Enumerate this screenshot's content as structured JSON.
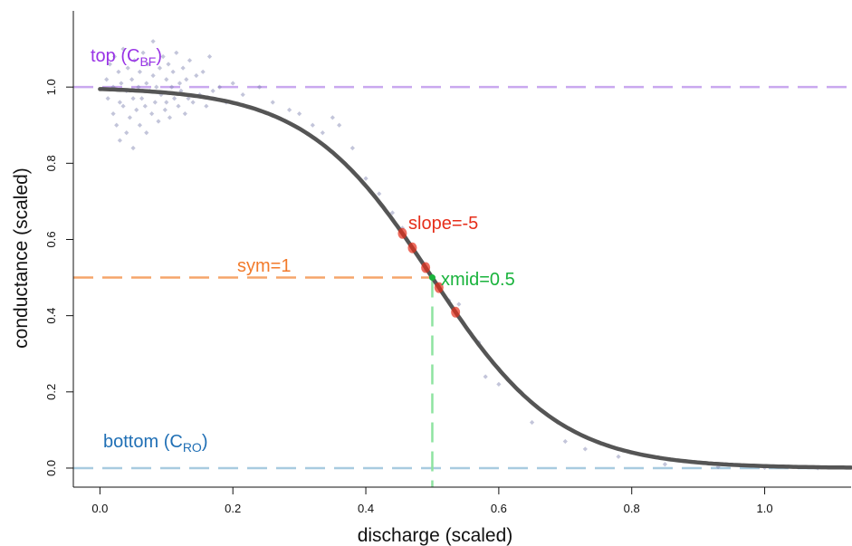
{
  "chart_data": {
    "type": "scatter",
    "xlabel": "discharge (scaled)",
    "ylabel": "conductance (scaled)",
    "xlim": [
      -0.04,
      1.13
    ],
    "ylim": [
      -0.05,
      1.2
    ],
    "x_ticks": [
      0.0,
      0.2,
      0.4,
      0.6,
      0.8,
      1.0
    ],
    "x_tick_labels": [
      "0.0",
      "0.2",
      "0.4",
      "0.6",
      "0.8",
      "1.0"
    ],
    "y_ticks": [
      0.0,
      0.2,
      0.4,
      0.6,
      0.8,
      1.0
    ],
    "y_tick_labels": [
      "0.0",
      "0.2",
      "0.4",
      "0.6",
      "0.8",
      "1.0"
    ],
    "grid": false,
    "model": {
      "top": 1.0,
      "bottom": 0.0,
      "xmid": 0.5,
      "slope": -5,
      "sym": 1
    },
    "scatter_points": [
      [
        0.01,
        1.02
      ],
      [
        0.012,
        0.97
      ],
      [
        0.015,
        1.06
      ],
      [
        0.02,
        0.93
      ],
      [
        0.02,
        1.0
      ],
      [
        0.022,
        1.08
      ],
      [
        0.025,
        0.9
      ],
      [
        0.028,
        1.04
      ],
      [
        0.03,
        0.96
      ],
      [
        0.03,
        0.86
      ],
      [
        0.032,
        1.01
      ],
      [
        0.035,
        0.95
      ],
      [
        0.035,
        1.1
      ],
      [
        0.04,
        0.88
      ],
      [
        0.04,
        0.99
      ],
      [
        0.042,
        1.05
      ],
      [
        0.045,
        0.92
      ],
      [
        0.048,
        1.02
      ],
      [
        0.05,
        0.97
      ],
      [
        0.05,
        0.84
      ],
      [
        0.052,
        1.07
      ],
      [
        0.055,
        0.94
      ],
      [
        0.058,
        1.0
      ],
      [
        0.06,
        0.9
      ],
      [
        0.06,
        1.04
      ],
      [
        0.063,
        0.97
      ],
      [
        0.065,
        1.09
      ],
      [
        0.068,
        0.95
      ],
      [
        0.07,
        1.01
      ],
      [
        0.07,
        0.88
      ],
      [
        0.072,
        1.06
      ],
      [
        0.075,
        0.99
      ],
      [
        0.078,
        0.93
      ],
      [
        0.08,
        1.03
      ],
      [
        0.08,
        1.12
      ],
      [
        0.083,
        0.96
      ],
      [
        0.085,
        1.0
      ],
      [
        0.088,
        0.91
      ],
      [
        0.09,
        1.05
      ],
      [
        0.092,
        0.98
      ],
      [
        0.095,
        1.08
      ],
      [
        0.098,
        0.94
      ],
      [
        0.1,
        1.02
      ],
      [
        0.1,
        0.96
      ],
      [
        0.103,
        1.06
      ],
      [
        0.105,
        0.92
      ],
      [
        0.108,
        1.0
      ],
      [
        0.11,
        1.04
      ],
      [
        0.112,
        0.97
      ],
      [
        0.115,
        1.09
      ],
      [
        0.118,
        0.95
      ],
      [
        0.12,
        1.01
      ],
      [
        0.122,
        0.99
      ],
      [
        0.125,
        1.05
      ],
      [
        0.128,
        0.93
      ],
      [
        0.13,
        1.02
      ],
      [
        0.133,
        0.97
      ],
      [
        0.135,
        1.07
      ],
      [
        0.14,
        0.96
      ],
      [
        0.145,
        1.03
      ],
      [
        0.15,
        0.98
      ],
      [
        0.155,
        1.04
      ],
      [
        0.16,
        0.95
      ],
      [
        0.165,
        1.08
      ],
      [
        0.17,
        0.99
      ],
      [
        0.18,
        1.0
      ],
      [
        0.19,
        0.96
      ],
      [
        0.2,
        1.01
      ],
      [
        0.215,
        0.98
      ],
      [
        0.24,
        1.0
      ],
      [
        0.26,
        0.96
      ],
      [
        0.285,
        0.94
      ],
      [
        0.3,
        0.93
      ],
      [
        0.32,
        0.9
      ],
      [
        0.335,
        0.88
      ],
      [
        0.35,
        0.92
      ],
      [
        0.36,
        0.9
      ],
      [
        0.38,
        0.84
      ],
      [
        0.4,
        0.76
      ],
      [
        0.42,
        0.72
      ],
      [
        0.44,
        0.67
      ],
      [
        0.455,
        0.63
      ],
      [
        0.47,
        0.58
      ],
      [
        0.49,
        0.52
      ],
      [
        0.51,
        0.48
      ],
      [
        0.525,
        0.44
      ],
      [
        0.54,
        0.43
      ],
      [
        0.555,
        0.36
      ],
      [
        0.57,
        0.33
      ],
      [
        0.58,
        0.24
      ],
      [
        0.6,
        0.22
      ],
      [
        0.65,
        0.12
      ],
      [
        0.7,
        0.07
      ],
      [
        0.73,
        0.05
      ],
      [
        0.78,
        0.03
      ],
      [
        0.85,
        0.01
      ],
      [
        0.93,
        0.003
      ],
      [
        1.0,
        0.001
      ],
      [
        1.08,
        0.0
      ]
    ],
    "annotations": {
      "top": {
        "text": "top (C",
        "sub": "BF",
        "close": ")",
        "color": "#9933e6"
      },
      "bottom": {
        "text": "bottom (C",
        "sub": "RO",
        "close": ")",
        "color": "#1f6fb5"
      },
      "sym": {
        "text": "sym=1",
        "color": "#f27a2a"
      },
      "slope": {
        "text": "slope=-5",
        "color": "#e62e1a"
      },
      "xmid": {
        "text": "xmid=0.5",
        "color": "#19b33c"
      }
    },
    "colors": {
      "curve": "#555555",
      "points": "#7b7fae",
      "top_line": "#c9a8ef",
      "bottom_line": "#a8cbe0",
      "sym_line": "#f5a56b",
      "xmid_line": "#8ee3a0",
      "slope_marks": "#e62e1a",
      "xmid_point": "#19b33c"
    }
  }
}
